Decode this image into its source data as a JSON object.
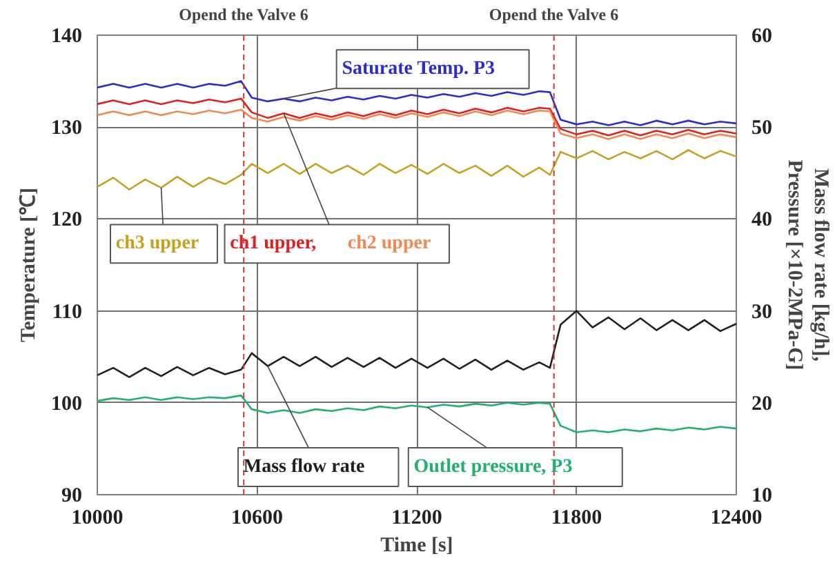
{
  "chart_data": {
    "type": "line",
    "xlabel": "Time [s]",
    "ylabel": "Temperature [℃]",
    "y2label": "Mass flow rate [kg/h],\nPressure [×10-2MPa-G]",
    "x": [
      10000,
      10060,
      10120,
      10180,
      10240,
      10300,
      10360,
      10420,
      10480,
      10540,
      10580,
      10640,
      10700,
      10760,
      10820,
      10880,
      10940,
      11000,
      11060,
      11120,
      11180,
      11240,
      11300,
      11360,
      11420,
      11480,
      11540,
      11600,
      11660,
      11700,
      11740,
      11800,
      11860,
      11920,
      11980,
      12040,
      12100,
      12160,
      12220,
      12280,
      12340,
      12400
    ],
    "xlim": [
      10000,
      12400
    ],
    "xticks": [
      10000,
      10600,
      11200,
      11800,
      12400
    ],
    "ylim": [
      90,
      140
    ],
    "yticks": [
      90,
      100,
      110,
      120,
      130,
      140
    ],
    "y2lim": [
      10,
      60
    ],
    "y2ticks": [
      10,
      20,
      30,
      40,
      50,
      60
    ],
    "grid": true,
    "series": [
      {
        "name": "Saturate Temp. P3",
        "color": "#2b2bd0",
        "values": [
          134.3,
          134.7,
          134.3,
          134.7,
          134.3,
          134.7,
          134.3,
          134.7,
          134.5,
          135.0,
          133.2,
          132.8,
          133.1,
          132.8,
          133.2,
          132.9,
          133.3,
          133.0,
          133.4,
          133.1,
          133.5,
          133.2,
          133.6,
          133.3,
          133.7,
          133.4,
          133.8,
          133.5,
          133.9,
          133.8,
          130.8,
          130.3,
          130.6,
          130.2,
          130.6,
          130.2,
          130.7,
          130.3,
          130.7,
          130.3,
          130.6,
          130.4
        ]
      },
      {
        "name": "ch1 upper,",
        "color": "#e02020",
        "values": [
          132.5,
          132.9,
          132.5,
          132.9,
          132.5,
          132.9,
          132.6,
          133.0,
          132.7,
          133.1,
          131.6,
          131.0,
          131.5,
          131.0,
          131.5,
          131.1,
          131.6,
          131.2,
          131.7,
          131.3,
          131.8,
          131.4,
          131.9,
          131.5,
          132.0,
          131.6,
          132.1,
          131.7,
          132.1,
          132.0,
          129.8,
          129.2,
          129.6,
          129.1,
          129.6,
          129.1,
          129.6,
          129.2,
          129.7,
          129.2,
          129.6,
          129.3
        ]
      },
      {
        "name": "ch2 upper",
        "color": "#f08a50",
        "values": [
          131.3,
          131.7,
          131.3,
          131.7,
          131.3,
          131.7,
          131.4,
          131.8,
          131.5,
          131.9,
          131.0,
          130.6,
          131.1,
          130.7,
          131.2,
          130.8,
          131.3,
          130.9,
          131.4,
          131.0,
          131.5,
          131.1,
          131.6,
          131.2,
          131.7,
          131.3,
          131.8,
          131.4,
          131.8,
          131.7,
          129.3,
          128.8,
          129.2,
          128.7,
          129.2,
          128.7,
          129.2,
          128.8,
          129.3,
          128.8,
          129.2,
          128.9
        ]
      },
      {
        "name": "ch3 upper",
        "color": "#c8a020",
        "values": [
          123.5,
          124.5,
          123.2,
          124.3,
          123.4,
          124.6,
          123.5,
          124.5,
          123.8,
          124.8,
          126.0,
          125.0,
          126.0,
          124.9,
          126.0,
          125.0,
          125.8,
          124.8,
          126.0,
          125.0,
          125.9,
          124.9,
          126.0,
          125.0,
          125.8,
          124.7,
          125.8,
          124.6,
          125.6,
          124.8,
          127.3,
          126.6,
          127.4,
          126.5,
          127.3,
          126.6,
          127.4,
          126.5,
          127.5,
          126.6,
          127.4,
          126.8
        ]
      },
      {
        "name": "Mass flow rate",
        "color": "#202020",
        "axis": "y2",
        "values": [
          23.0,
          23.8,
          22.8,
          23.8,
          22.9,
          23.9,
          23.0,
          23.8,
          23.1,
          23.6,
          25.4,
          24.0,
          25.0,
          24.0,
          25.0,
          23.9,
          24.9,
          23.9,
          24.9,
          23.8,
          24.8,
          23.8,
          24.8,
          23.7,
          24.7,
          23.6,
          24.6,
          23.6,
          24.4,
          23.8,
          28.5,
          30.0,
          28.2,
          29.3,
          28.0,
          29.2,
          27.9,
          29.0,
          27.9,
          29.0,
          27.8,
          28.6
        ]
      },
      {
        "name": "Outlet pressure, P3",
        "color": "#20b070",
        "axis": "y2",
        "values": [
          20.2,
          20.5,
          20.3,
          20.6,
          20.3,
          20.6,
          20.4,
          20.6,
          20.5,
          20.8,
          19.3,
          18.9,
          19.2,
          18.9,
          19.3,
          19.1,
          19.4,
          19.2,
          19.6,
          19.4,
          19.7,
          19.5,
          19.8,
          19.6,
          19.9,
          19.7,
          20.0,
          19.8,
          20.0,
          19.9,
          17.5,
          16.8,
          17.0,
          16.8,
          17.1,
          16.9,
          17.2,
          17.0,
          17.3,
          17.1,
          17.4,
          17.2
        ]
      }
    ],
    "ref_lines": [
      {
        "axis": "x",
        "value": 10550,
        "label": "Opend the Valve 6",
        "color": "#e03030",
        "line_style": "dashed"
      },
      {
        "axis": "x",
        "value": 11715,
        "label": "Opend the Valve 6",
        "color": "#e03030",
        "line_style": "dashed"
      }
    ]
  }
}
